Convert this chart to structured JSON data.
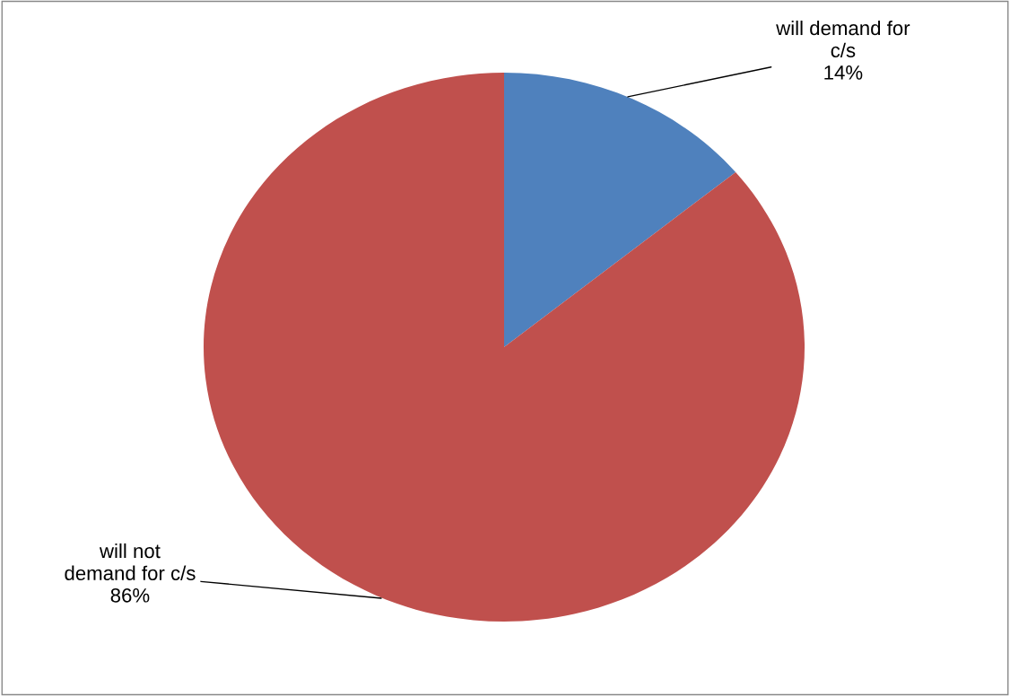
{
  "chart_data": {
    "type": "pie",
    "categories": [
      "will demand for\nc/s",
      "will not\ndemand for c/s"
    ],
    "values": [
      14,
      86
    ],
    "colors": [
      "#4f81bd",
      "#c0504d"
    ],
    "value_labels": [
      "14%",
      "86%"
    ],
    "legend": false
  }
}
